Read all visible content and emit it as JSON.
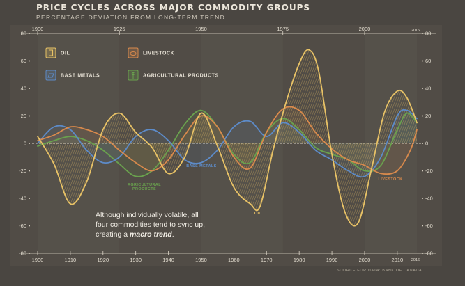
{
  "header": {
    "title": "PRICE CYCLES ACROSS MAJOR COMMODITY GROUPS",
    "subtitle": "PERCENTAGE DEVIATION FROM LONG-TERM TREND"
  },
  "note": {
    "line1": "Although individually volatile, all",
    "line2": "four commodities tend to sync up,",
    "line3_plain": "creating a ",
    "line3_emph": "macro trend",
    "line3_end": "."
  },
  "source": "SOURCE FOR DATA: BANK OF CANADA",
  "colors": {
    "oil": "#e8c266",
    "livestock": "#d98a4c",
    "base_metals": "#5d8bc8",
    "agricultural": "#6aa24e",
    "background": "#4a4641",
    "zero_line": "#dcd5c6"
  },
  "legend": [
    {
      "label": "OIL",
      "icon": "oil-barrel-icon",
      "color": "#e8c266"
    },
    {
      "label": "LIVESTOCK",
      "icon": "livestock-icon",
      "color": "#d98a4c"
    },
    {
      "label": "BASE METALS",
      "icon": "base-metals-icon",
      "color": "#5d8bc8"
    },
    {
      "label": "AGRICULTURAL PRODUCTS",
      "icon": "wheat-icon",
      "color": "#6aa24e"
    }
  ],
  "chart_data": {
    "type": "line",
    "title": "PRICE CYCLES ACROSS MAJOR COMMODITY GROUPS",
    "subtitle": "PERCENTAGE DEVIATION FROM LONG-TERM TREND",
    "xlabel": "",
    "ylabel": "",
    "xlim": [
      1900,
      2016
    ],
    "ylim": [
      -80,
      80
    ],
    "x_ticks_bottom": [
      1900,
      1910,
      1920,
      1930,
      1940,
      1950,
      1960,
      1970,
      1980,
      1990,
      2000,
      2010
    ],
    "x_ticks_top": [
      1900,
      1925,
      1950,
      1975,
      2000
    ],
    "x_end_label": "2016",
    "y_ticks": [
      -80,
      -60,
      -40,
      -20,
      0,
      20,
      40,
      60,
      80
    ],
    "y_tick_labels_left": [
      "80",
      "60",
      "40",
      "20",
      "0",
      "-20",
      "-40",
      "-60",
      "-80"
    ],
    "y_tick_labels_right": [
      "80",
      "60",
      "40",
      "20",
      "0",
      "-20",
      "-40",
      "-60",
      "-80"
    ],
    "grid": false,
    "series": [
      {
        "name": "OIL",
        "x": [
          1900,
          1905,
          1910,
          1915,
          1920,
          1925,
          1930,
          1935,
          1940,
          1945,
          1950,
          1955,
          1960,
          1965,
          1968,
          1972,
          1976,
          1980,
          1983,
          1986,
          1990,
          1994,
          1998,
          2002,
          2006,
          2010,
          2013,
          2016
        ],
        "values": [
          5,
          -15,
          -44,
          -28,
          10,
          22,
          8,
          -3,
          -22,
          -10,
          22,
          -2,
          -32,
          -44,
          -46,
          -5,
          30,
          58,
          68,
          52,
          -8,
          -50,
          -58,
          -20,
          22,
          38,
          33,
          15
        ]
      },
      {
        "name": "LIVESTOCK",
        "x": [
          1900,
          1905,
          1910,
          1915,
          1920,
          1925,
          1930,
          1935,
          1940,
          1945,
          1950,
          1955,
          1960,
          1965,
          1970,
          1975,
          1980,
          1985,
          1990,
          1995,
          2000,
          2005,
          2010,
          2014,
          2016
        ],
        "values": [
          2,
          6,
          12,
          10,
          5,
          -5,
          -14,
          -20,
          -12,
          6,
          20,
          12,
          -10,
          -18,
          8,
          25,
          24,
          8,
          -4,
          -12,
          -16,
          -22,
          -20,
          -5,
          10
        ]
      },
      {
        "name": "BASE METALS",
        "x": [
          1900,
          1905,
          1910,
          1915,
          1920,
          1925,
          1930,
          1935,
          1940,
          1945,
          1950,
          1955,
          1960,
          1965,
          1970,
          1975,
          1980,
          1985,
          1990,
          1995,
          2000,
          2005,
          2010,
          2013,
          2016
        ],
        "values": [
          0,
          12,
          10,
          -5,
          -14,
          -10,
          5,
          10,
          2,
          -12,
          -14,
          -5,
          12,
          16,
          5,
          15,
          8,
          -5,
          -12,
          -20,
          -24,
          -10,
          20,
          24,
          18
        ]
      },
      {
        "name": "AGRICULTURAL PRODUCTS",
        "x": [
          1900,
          1905,
          1910,
          1915,
          1920,
          1925,
          1930,
          1935,
          1940,
          1945,
          1950,
          1955,
          1960,
          1965,
          1970,
          1975,
          1980,
          1985,
          1990,
          1995,
          2000,
          2005,
          2010,
          2013,
          2016
        ],
        "values": [
          -2,
          2,
          5,
          2,
          -5,
          -15,
          -24,
          -20,
          -5,
          14,
          24,
          12,
          -8,
          -14,
          8,
          18,
          10,
          -3,
          -8,
          -12,
          -20,
          -16,
          10,
          22,
          15
        ]
      }
    ],
    "annotations": [
      {
        "text": "AGRICULTURAL\nPRODUCTS",
        "series": "AGRICULTURAL PRODUCTS",
        "near_x": 1932
      },
      {
        "text": "BASE METALS",
        "series": "BASE METALS",
        "near_x": 1950
      },
      {
        "text": "OIL",
        "series": "OIL",
        "near_x": 1968
      },
      {
        "text": "LIVESTOCK",
        "series": "LIVESTOCK",
        "near_x": 2008
      }
    ]
  }
}
